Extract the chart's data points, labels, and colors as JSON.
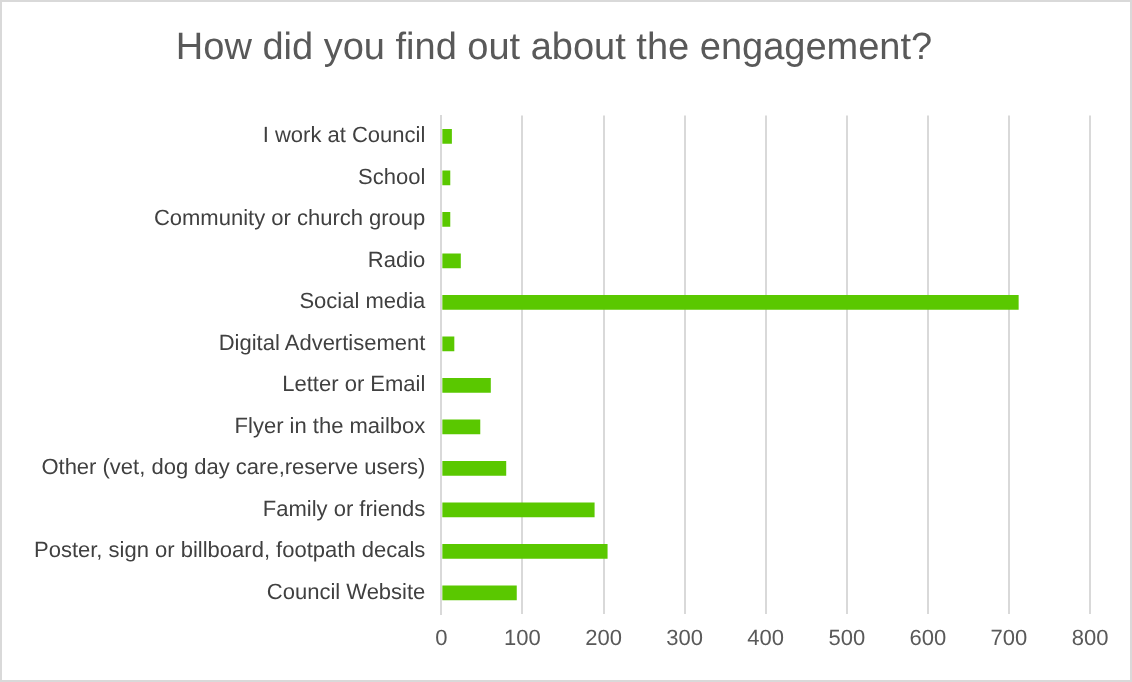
{
  "chart_data": {
    "type": "bar",
    "orientation": "horizontal",
    "title": "How did you find out about the engagement?",
    "categories": [
      "I work at Council",
      "School",
      "Community or church group",
      "Radio",
      "Social media",
      "Digital Advertisement",
      "Letter or Email",
      "Flyer in the mailbox",
      "Other (vet, dog day care,reserve users)",
      "Family or friends",
      "Poster, sign or billboard, footpath decals",
      "Council Website"
    ],
    "values": [
      13,
      11,
      11,
      24,
      712,
      16,
      61,
      48,
      80,
      189,
      205,
      93
    ],
    "color": "#5ac800",
    "xlim": [
      0,
      800
    ],
    "xticks": [
      0,
      100,
      200,
      300,
      400,
      500,
      600,
      700,
      800
    ],
    "grid": "x",
    "legend": false
  }
}
